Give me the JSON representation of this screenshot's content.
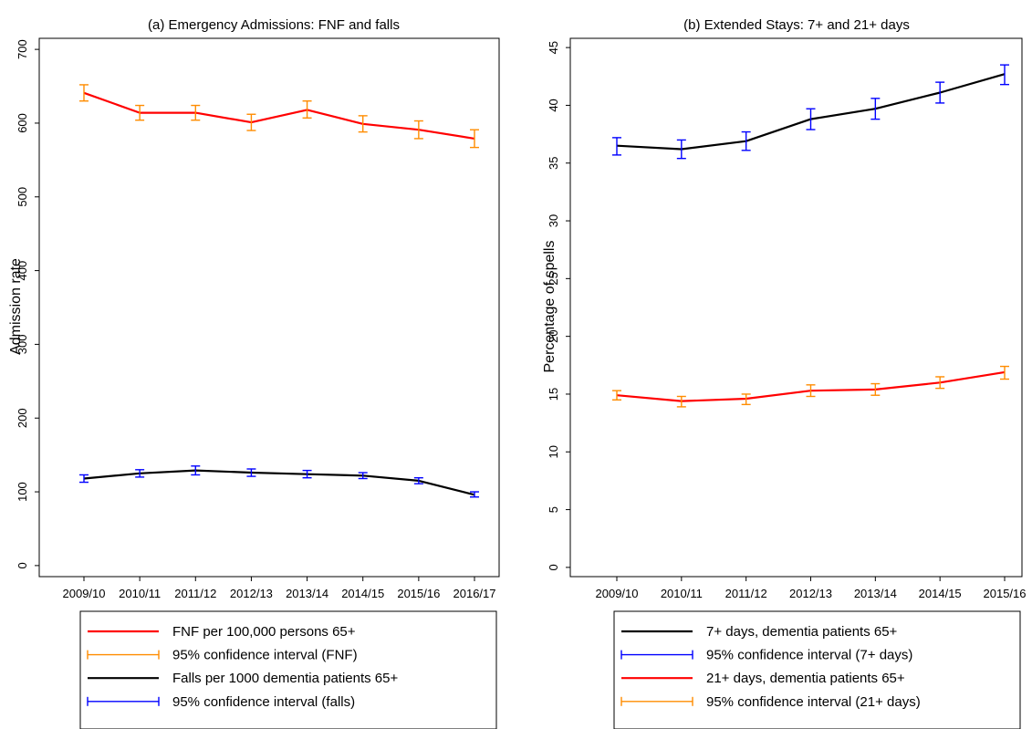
{
  "chart_data": [
    {
      "type": "line",
      "title": "(a) Emergency Admissions: FNF and falls",
      "xlabel": "",
      "ylabel": "Admission rate",
      "categories": [
        "2009/10",
        "2010/11",
        "2011/12",
        "2012/13",
        "2013/14",
        "2014/15",
        "2015/16",
        "2016/17"
      ],
      "ylim": [
        -15,
        715
      ],
      "yticks": [
        0,
        100,
        200,
        300,
        400,
        500,
        600,
        700
      ],
      "grid": false,
      "legend_position": "bottom",
      "series": [
        {
          "name": "FNF per 100,000 persons 65+",
          "color": "#ff0000",
          "values": [
            641,
            614,
            614,
            601,
            618,
            599,
            591,
            579
          ],
          "ci_name": "95% confidence interval (FNF)",
          "ci_color": "#ff8c00",
          "ci_lower": [
            630,
            604,
            604,
            590,
            607,
            588,
            579,
            567
          ],
          "ci_upper": [
            652,
            624,
            624,
            612,
            630,
            610,
            603,
            591
          ]
        },
        {
          "name": "Falls per 1000 dementia patients 65+",
          "color": "#000000",
          "values": [
            118,
            125,
            129,
            126,
            124,
            122,
            115,
            96
          ],
          "ci_name": "95% confidence interval (falls)",
          "ci_color": "#0000ff",
          "ci_lower": [
            113,
            120,
            123,
            121,
            119,
            118,
            111,
            93
          ],
          "ci_upper": [
            123,
            130,
            135,
            131,
            129,
            126,
            119,
            100
          ]
        }
      ]
    },
    {
      "type": "line",
      "title": "(b) Extended Stays: 7+ and 21+ days",
      "xlabel": "",
      "ylabel": "Percentage of spells",
      "categories": [
        "2009/10",
        "2010/11",
        "2011/12",
        "2012/13",
        "2013/14",
        "2014/15",
        "2015/16"
      ],
      "ylim": [
        -0.8,
        45.8
      ],
      "yticks": [
        0,
        5,
        10,
        15,
        20,
        25,
        30,
        35,
        40,
        45
      ],
      "grid": false,
      "legend_position": "bottom",
      "series": [
        {
          "name": "7+ days, dementia patients 65+",
          "color": "#000000",
          "values": [
            36.5,
            36.2,
            36.9,
            38.8,
            39.7,
            41.1,
            42.7
          ],
          "ci_name": "95% confidence interval (7+ days)",
          "ci_color": "#0000ff",
          "ci_lower": [
            35.7,
            35.4,
            36.1,
            37.9,
            38.8,
            40.2,
            41.8
          ],
          "ci_upper": [
            37.2,
            37.0,
            37.7,
            39.7,
            40.6,
            42.0,
            43.5
          ]
        },
        {
          "name": "21+ days, dementia patients 65+",
          "color": "#ff0000",
          "values": [
            14.9,
            14.4,
            14.6,
            15.3,
            15.4,
            16.0,
            16.9
          ],
          "ci_name": "95% confidence interval (21+ days)",
          "ci_color": "#ff8c00",
          "ci_lower": [
            14.5,
            13.9,
            14.1,
            14.8,
            14.9,
            15.5,
            16.3
          ],
          "ci_upper": [
            15.3,
            14.8,
            15.0,
            15.8,
            15.9,
            16.5,
            17.4
          ]
        }
      ]
    }
  ]
}
